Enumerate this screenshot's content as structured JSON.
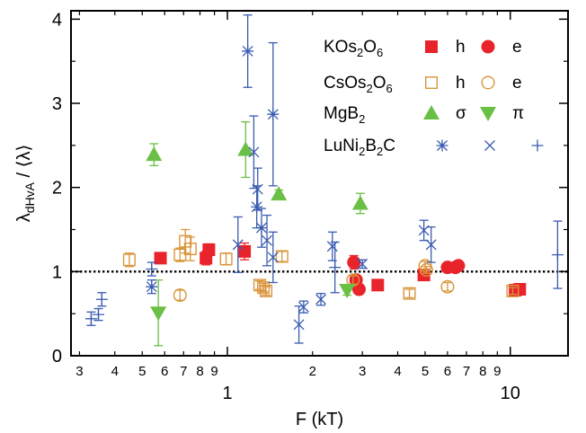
{
  "chart_data": {
    "type": "scatter",
    "xlabel": "F (kT)",
    "ylabel": "λ_dHvA / ⟨λ⟩",
    "ylabel_main": "λ",
    "ylabel_sub": "dHvA",
    "ylabel_rest": " / ⟨λ⟩",
    "x_scale": "log",
    "xlim": [
      0.28,
      16
    ],
    "ylim": [
      0,
      4.1
    ],
    "x_major_ticks": [
      1,
      10
    ],
    "x_major_labels": [
      "1",
      "10"
    ],
    "x_minor_ticks": [
      0.3,
      0.4,
      0.5,
      0.6,
      0.7,
      0.8,
      0.9,
      2,
      3,
      4,
      5,
      6,
      7,
      8,
      9
    ],
    "x_minor_labels": [
      "3",
      "4",
      "5",
      "6",
      "7",
      "8",
      "9",
      "2",
      "3",
      "4",
      "5",
      "6",
      "7",
      "8",
      "9"
    ],
    "y_ticks": [
      0,
      1,
      2,
      3,
      4
    ],
    "y_labels": [
      "0",
      "1",
      "2",
      "3",
      "4"
    ],
    "reference_line": {
      "y": 1,
      "style": "dotted"
    },
    "grid": false,
    "legend": {
      "placement": "top-right",
      "rows": [
        {
          "label": "KOs",
          "sub1": "2",
          "mid": "O",
          "sub2": "6",
          "color": "#e8232a",
          "markers": [
            {
              "shape": "square-filled",
              "text": "h"
            },
            {
              "shape": "circle-filled",
              "text": "e"
            }
          ]
        },
        {
          "label": "CsOs",
          "sub1": "2",
          "mid": "O",
          "sub2": "6",
          "color": "#d9953b",
          "markers": [
            {
              "shape": "square-open",
              "text": "h"
            },
            {
              "shape": "circle-open",
              "text": "e"
            }
          ]
        },
        {
          "label": "MgB",
          "sub1": "2",
          "mid": "",
          "sub2": "",
          "color": "#6abf45",
          "markers": [
            {
              "shape": "triangle-up",
              "text": "σ"
            },
            {
              "shape": "triangle-down",
              "text": "π"
            }
          ]
        },
        {
          "label": "LuNi",
          "sub1": "2",
          "mid": "B",
          "sub2": "2",
          "tail": "C",
          "color": "#3a5bb0",
          "markers": [
            {
              "shape": "asterisk",
              "text": ""
            },
            {
              "shape": "cross",
              "text": ""
            },
            {
              "shape": "plus",
              "text": ""
            }
          ]
        }
      ]
    },
    "series": [
      {
        "name": "KOs2O6 h",
        "color": "#e8232a",
        "marker": "square-filled",
        "points": [
          [
            0.58,
            1.16,
            0.03
          ],
          [
            0.84,
            1.16,
            0.08
          ],
          [
            0.86,
            1.26,
            0.07
          ],
          [
            1.15,
            1.24,
            0.1
          ],
          [
            3.4,
            0.84,
            0.03
          ],
          [
            4.95,
            0.96,
            0.04
          ],
          [
            10.4,
            0.78,
            0.03
          ],
          [
            10.8,
            0.79,
            0.03
          ]
        ]
      },
      {
        "name": "KOs2O6 e",
        "color": "#e8232a",
        "marker": "circle-filled",
        "points": [
          [
            2.8,
            1.11,
            0.08
          ],
          [
            2.85,
            0.9,
            0.05
          ],
          [
            2.92,
            0.79,
            0.04
          ],
          [
            6.0,
            1.05,
            0.03
          ],
          [
            6.4,
            1.05,
            0.03
          ],
          [
            6.55,
            1.07,
            0.03
          ]
        ]
      },
      {
        "name": "CsOs2O6 h",
        "color": "#d9953b",
        "marker": "square-open",
        "points": [
          [
            0.45,
            1.14,
            0.08
          ],
          [
            0.68,
            1.2,
            0.08
          ],
          [
            0.71,
            1.36,
            0.14
          ],
          [
            0.74,
            1.27,
            0.14
          ],
          [
            0.99,
            1.15,
            0.07
          ],
          [
            1.3,
            0.84,
            0.05
          ],
          [
            1.34,
            0.81,
            0.05
          ],
          [
            1.37,
            0.77,
            0.05
          ],
          [
            1.56,
            1.18,
            0.06
          ],
          [
            4.4,
            0.74,
            0.05
          ],
          [
            10.2,
            0.77,
            0.04
          ]
        ]
      },
      {
        "name": "CsOs2O6 e",
        "color": "#d9953b",
        "marker": "circle-open",
        "points": [
          [
            0.68,
            0.72,
            0.06
          ],
          [
            2.78,
            0.9,
            0.05
          ],
          [
            5.0,
            1.07,
            0.05
          ],
          [
            5.05,
            1.02,
            0.04
          ],
          [
            6.0,
            0.82,
            0.05
          ]
        ]
      },
      {
        "name": "MgB2 σ",
        "color": "#6abf45",
        "marker": "triangle-up",
        "points": [
          [
            0.55,
            2.39,
            0.13
          ],
          [
            1.16,
            2.45,
            0.33
          ],
          [
            1.52,
            1.92,
            0.05
          ],
          [
            2.95,
            1.81,
            0.12
          ]
        ]
      },
      {
        "name": "MgB2 π",
        "color": "#6abf45",
        "marker": "triangle-down",
        "points": [
          [
            0.57,
            0.51,
            0.39
          ],
          [
            2.65,
            0.78,
            0.06
          ]
        ]
      },
      {
        "name": "LuNi2B2C *",
        "color": "#3a5bb0",
        "marker": "asterisk",
        "points": [
          [
            0.54,
            0.82,
            0.08
          ],
          [
            1.18,
            3.62,
            0.43
          ],
          [
            1.27,
            1.77,
            0.25
          ],
          [
            1.32,
            1.52,
            0.23
          ],
          [
            1.45,
            2.87,
            0.85
          ]
        ]
      },
      {
        "name": "LuNi2B2C x",
        "color": "#3a5bb0",
        "marker": "cross",
        "points": [
          [
            1.09,
            1.32,
            0.33
          ],
          [
            1.24,
            2.42,
            0.43
          ],
          [
            1.28,
            1.98,
            0.25
          ],
          [
            1.38,
            1.37,
            0.3
          ],
          [
            1.45,
            1.17,
            0.3
          ],
          [
            1.79,
            0.37,
            0.22
          ],
          [
            1.86,
            0.58,
            0.07
          ],
          [
            2.14,
            0.67,
            0.07
          ],
          [
            2.35,
            1.3,
            0.17
          ],
          [
            3.0,
            1.09,
            0.05
          ],
          [
            4.95,
            1.49,
            0.12
          ],
          [
            5.25,
            1.32,
            0.21
          ]
        ]
      },
      {
        "name": "LuNi2B2C +",
        "color": "#3a5bb0",
        "marker": "plus",
        "points": [
          [
            0.33,
            0.44,
            0.08
          ],
          [
            0.35,
            0.49,
            0.07
          ],
          [
            0.36,
            0.67,
            0.08
          ],
          [
            0.54,
            1.03,
            0.08
          ],
          [
            2.4,
            1.05,
            0.3
          ],
          [
            14.7,
            1.2,
            0.4
          ]
        ]
      }
    ]
  }
}
